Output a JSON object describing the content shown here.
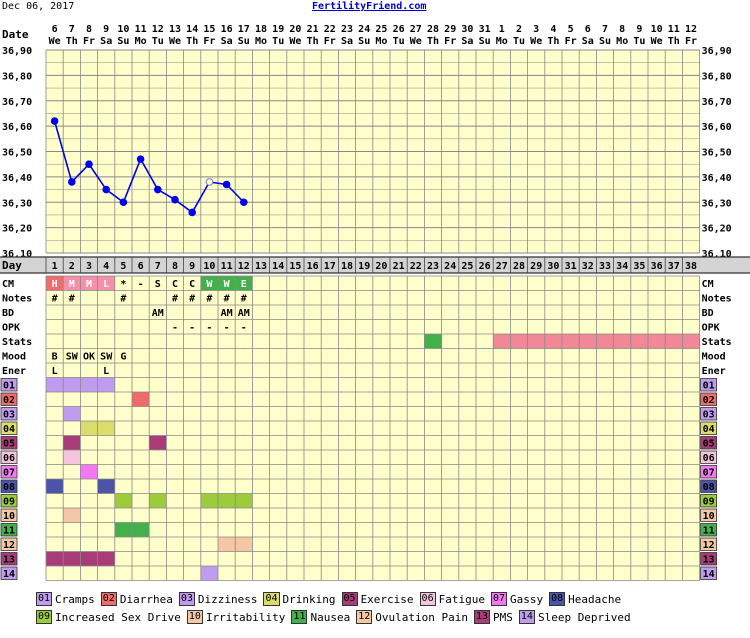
{
  "header": {
    "date": "Dec 06, 2017",
    "site": "FertilityFriend.com"
  },
  "labels": {
    "date": "Date",
    "day": "Day"
  },
  "dates": [
    [
      "6",
      "We"
    ],
    [
      "7",
      "Th"
    ],
    [
      "8",
      "Fr"
    ],
    [
      "9",
      "Sa"
    ],
    [
      "10",
      "Su"
    ],
    [
      "11",
      "Mo"
    ],
    [
      "12",
      "Tu"
    ],
    [
      "13",
      "We"
    ],
    [
      "14",
      "Th"
    ],
    [
      "15",
      "Fr"
    ],
    [
      "16",
      "Sa"
    ],
    [
      "17",
      "Su"
    ],
    [
      "18",
      "Mo"
    ],
    [
      "19",
      "Tu"
    ],
    [
      "20",
      "We"
    ],
    [
      "21",
      "Th"
    ],
    [
      "22",
      "Fr"
    ],
    [
      "23",
      "Sa"
    ],
    [
      "24",
      "Su"
    ],
    [
      "25",
      "Mo"
    ],
    [
      "26",
      "Tu"
    ],
    [
      "27",
      "We"
    ],
    [
      "28",
      "Th"
    ],
    [
      "29",
      "Fr"
    ],
    [
      "30",
      "Sa"
    ],
    [
      "31",
      "Su"
    ],
    [
      "1",
      "Mo"
    ],
    [
      "2",
      "Tu"
    ],
    [
      "3",
      "We"
    ],
    [
      "4",
      "Th"
    ],
    [
      "5",
      "Fr"
    ],
    [
      "6",
      "Sa"
    ],
    [
      "7",
      "Su"
    ],
    [
      "8",
      "Mo"
    ],
    [
      "9",
      "Tu"
    ],
    [
      "10",
      "We"
    ],
    [
      "11",
      "Th"
    ],
    [
      "12",
      "Fr"
    ]
  ],
  "temp_axis": {
    "min": 36.1,
    "max": 36.9,
    "step": 0.05,
    "labels": [
      "36,90",
      "36,80",
      "36,70",
      "36,60",
      "36,50",
      "36,40",
      "36,30",
      "36,20",
      "36,10"
    ]
  },
  "chart_data": {
    "type": "line",
    "title": "",
    "xlabel": "Day",
    "ylabel": "",
    "ylim": [
      36.1,
      36.9
    ],
    "x": [
      1,
      2,
      3,
      4,
      5,
      6,
      7,
      8,
      9,
      10,
      11,
      12
    ],
    "series": [
      {
        "values": [
          36.62,
          36.38,
          36.45,
          36.35,
          36.3,
          36.47,
          36.35,
          36.31,
          36.26,
          36.38,
          36.37,
          36.3
        ],
        "open_points": [
          10
        ]
      }
    ]
  },
  "row_labels": [
    "CM",
    "Notes",
    "BD",
    "OPK",
    "Stats",
    "Mood",
    "Ener"
  ],
  "rows": {
    "CM": [
      {
        "day": 1,
        "text": "H",
        "color": "#f06c6c"
      },
      {
        "day": 2,
        "text": "M",
        "color": "#f490a8"
      },
      {
        "day": 3,
        "text": "M",
        "color": "#f490a8"
      },
      {
        "day": 4,
        "text": "L",
        "color": "#f490a8"
      },
      {
        "day": 5,
        "text": "*"
      },
      {
        "day": 6,
        "text": "-"
      },
      {
        "day": 7,
        "text": "S"
      },
      {
        "day": 8,
        "text": "C"
      },
      {
        "day": 9,
        "text": "C"
      },
      {
        "day": 10,
        "text": "W",
        "color": "#44b04c"
      },
      {
        "day": 11,
        "text": "W",
        "color": "#44b04c"
      },
      {
        "day": 12,
        "text": "E",
        "color": "#44b04c"
      }
    ],
    "Notes": [
      {
        "day": 1,
        "text": "#"
      },
      {
        "day": 2,
        "text": "#"
      },
      {
        "day": 5,
        "text": "#"
      },
      {
        "day": 8,
        "text": "#"
      },
      {
        "day": 9,
        "text": "#"
      },
      {
        "day": 10,
        "text": "#"
      },
      {
        "day": 11,
        "text": "#"
      },
      {
        "day": 12,
        "text": "#"
      }
    ],
    "BD": [
      {
        "day": 7,
        "text": "AM"
      },
      {
        "day": 11,
        "text": "AM"
      },
      {
        "day": 12,
        "text": "AM"
      }
    ],
    "OPK": [
      {
        "day": 8,
        "text": "-"
      },
      {
        "day": 9,
        "text": "-"
      },
      {
        "day": 10,
        "text": "-"
      },
      {
        "day": 11,
        "text": "-"
      },
      {
        "day": 12,
        "text": "-"
      }
    ],
    "Mood": [
      {
        "day": 1,
        "text": "B"
      },
      {
        "day": 2,
        "text": "SW"
      },
      {
        "day": 3,
        "text": "OK"
      },
      {
        "day": 4,
        "text": "SW"
      },
      {
        "day": 5,
        "text": "G"
      }
    ],
    "Ener": [
      {
        "day": 1,
        "text": "L"
      },
      {
        "day": 4,
        "text": "L"
      }
    ]
  },
  "stats_marks": [
    {
      "from": 23,
      "to": 23,
      "color": "#44b04c"
    },
    {
      "from": 27,
      "to": 38,
      "color": "#f08898"
    }
  ],
  "symptoms": [
    {
      "code": "01",
      "name": "Cramps",
      "color": "#c09cf0",
      "days": [
        1,
        2,
        3,
        4
      ]
    },
    {
      "code": "02",
      "name": "Diarrhea",
      "color": "#f06c6c",
      "days": [
        6
      ]
    },
    {
      "code": "03",
      "name": "Dizziness",
      "color": "#c09cf0",
      "days": [
        2
      ]
    },
    {
      "code": "04",
      "name": "Drinking",
      "color": "#dcdc6c",
      "days": [
        3,
        4
      ]
    },
    {
      "code": "05",
      "name": "Exercise",
      "color": "#a83c78",
      "days": [
        2,
        7
      ]
    },
    {
      "code": "06",
      "name": "Fatigue",
      "color": "#f4c4dc",
      "days": [
        2
      ]
    },
    {
      "code": "07",
      "name": "Gassy",
      "color": "#f478f4",
      "days": [
        3
      ]
    },
    {
      "code": "08",
      "name": "Headache",
      "color": "#4c54a8",
      "days": [
        1,
        4
      ]
    },
    {
      "code": "09",
      "name": "Increased Sex Drive",
      "color": "#9ccc3c",
      "days": [
        5,
        7,
        10,
        11,
        12
      ]
    },
    {
      "code": "10",
      "name": "Irritability",
      "color": "#f4c8a4",
      "days": [
        2
      ]
    },
    {
      "code": "11",
      "name": "Nausea",
      "color": "#44b04c",
      "days": [
        5,
        6
      ]
    },
    {
      "code": "12",
      "name": "Ovulation Pain",
      "color": "#f4c8a4",
      "days": [
        11,
        12
      ]
    },
    {
      "code": "13",
      "name": "PMS",
      "color": "#a83c78",
      "days": [
        1,
        2,
        3,
        4
      ]
    },
    {
      "code": "14",
      "name": "Sleep Deprived",
      "color": "#c09cf0",
      "days": [
        10
      ]
    }
  ],
  "colors": {
    "grid_bg": "#ffffcc",
    "grid_line": "#888888",
    "label_bg": "#d4d4d4",
    "line": "#0000ee",
    "link": "#0000cc"
  }
}
